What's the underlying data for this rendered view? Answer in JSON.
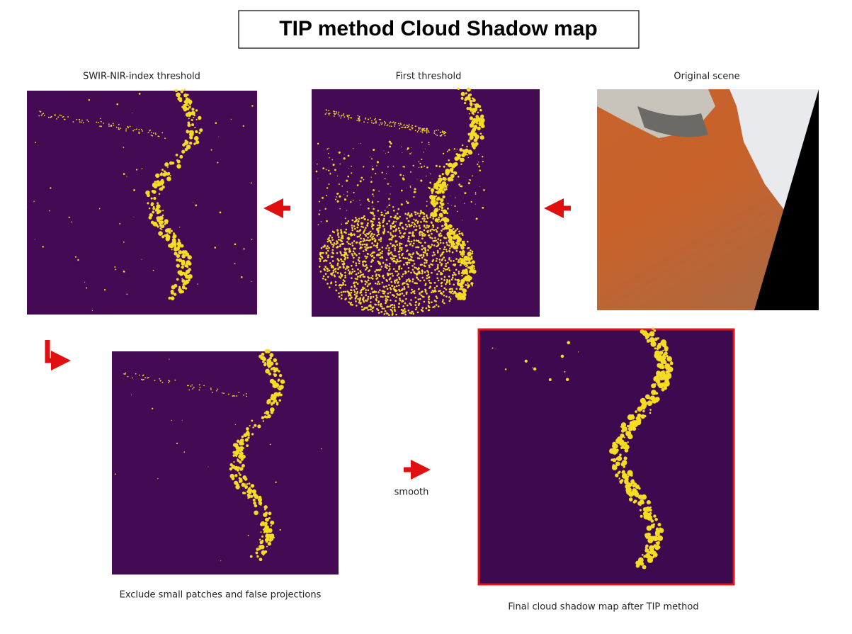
{
  "title": "TIP method Cloud Shadow map",
  "panels": [
    {
      "label": "SWIR-NIR-index threshold"
    },
    {
      "label": "First threshold"
    },
    {
      "label": "Original scene"
    },
    {
      "label": "Exclude small patches and false projections"
    },
    {
      "label": "Final cloud shadow map after TIP method"
    }
  ],
  "steps": [
    {
      "label": "smooth"
    }
  ]
}
